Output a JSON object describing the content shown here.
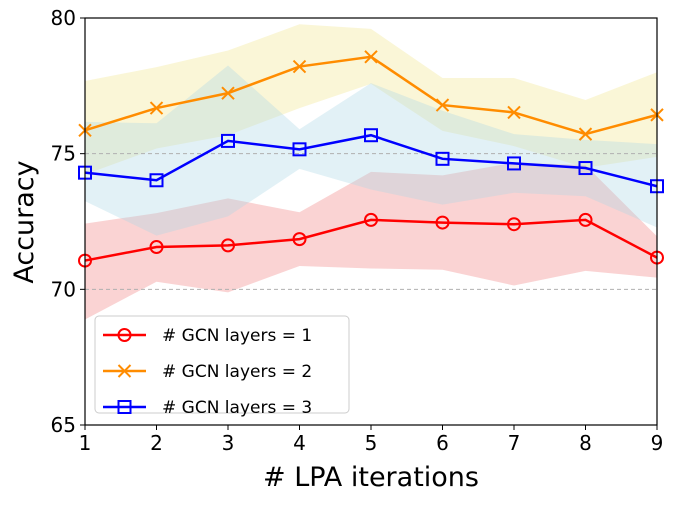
{
  "chart_data": {
    "type": "line",
    "title": "",
    "xlabel": "# LPA iterations",
    "ylabel": "Accuracy",
    "xlim": [
      1,
      9
    ],
    "ylim": [
      65,
      80
    ],
    "x": [
      1,
      2,
      3,
      4,
      5,
      6,
      7,
      8,
      9
    ],
    "xticks": [
      "1",
      "2",
      "3",
      "4",
      "5",
      "6",
      "7",
      "8",
      "9"
    ],
    "yticks": [
      65,
      70,
      75,
      80
    ],
    "grid": "horizontal dashed at 70 and 75",
    "legend_position": "lower-left",
    "series": [
      {
        "name": "# GCN layers = 1",
        "color": "#ff0000",
        "band_color": "#f08080",
        "marker": "circle",
        "values": [
          71.06,
          71.56,
          71.62,
          71.85,
          72.56,
          72.46,
          72.4,
          72.56,
          71.17
        ],
        "upper": [
          72.42,
          72.81,
          73.35,
          72.84,
          74.33,
          74.2,
          74.67,
          74.58,
          71.95
        ],
        "lower": [
          68.89,
          70.28,
          69.89,
          70.86,
          70.77,
          70.72,
          70.14,
          70.68,
          70.43
        ]
      },
      {
        "name": "# GCN layers = 2",
        "color": "#ff8c00",
        "band_color": "#f0e68c",
        "marker": "x",
        "values": [
          75.86,
          76.68,
          77.23,
          78.21,
          78.57,
          76.79,
          76.52,
          75.72,
          76.43
        ],
        "upper": [
          77.68,
          78.19,
          78.8,
          79.77,
          79.6,
          77.79,
          77.79,
          76.98,
          78.0
        ],
        "lower": [
          74.23,
          75.19,
          75.68,
          76.68,
          77.57,
          75.84,
          75.28,
          74.48,
          74.88
        ]
      },
      {
        "name": "# GCN layers = 3",
        "color": "#0000ff",
        "band_color": "#add8e6",
        "marker": "square",
        "values": [
          74.3,
          74.02,
          75.47,
          75.16,
          75.68,
          74.81,
          74.64,
          74.47,
          73.8
        ],
        "upper": [
          76.17,
          76.12,
          78.25,
          75.9,
          77.6,
          76.58,
          75.72,
          75.51,
          75.35
        ],
        "lower": [
          73.25,
          71.98,
          72.69,
          74.44,
          73.68,
          73.12,
          73.56,
          73.43,
          72.28
        ]
      }
    ]
  }
}
